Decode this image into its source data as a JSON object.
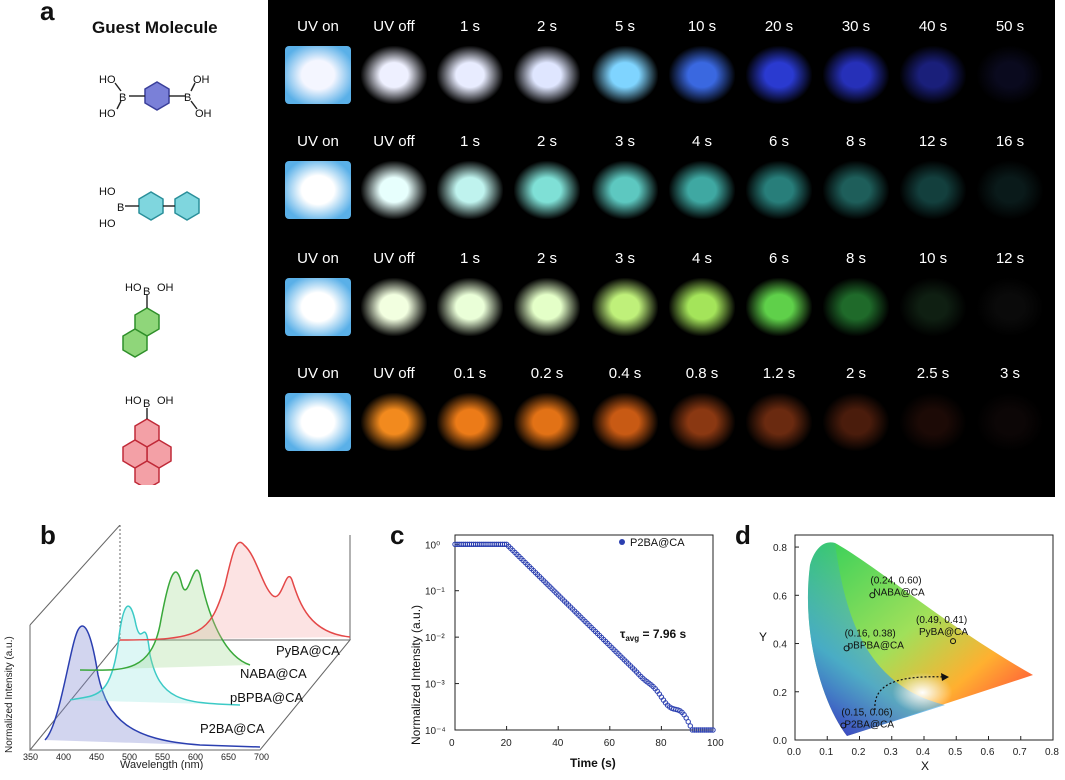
{
  "panel_labels": {
    "a": "a",
    "b": "b",
    "c": "c",
    "d": "d"
  },
  "guest_title": "Guest Molecule",
  "molecules": [
    {
      "name": "benzene-diboronic-acid",
      "color": "#5559c8",
      "labels": [
        "HO",
        "B",
        "OH",
        "B",
        "HO",
        "OH"
      ]
    },
    {
      "name": "biphenyl-boronic-acid",
      "color": "#35b8c8",
      "labels": [
        "HO",
        "B",
        "HO"
      ]
    },
    {
      "name": "naphthalene-boronic-acid",
      "color": "#3fae3b",
      "labels": [
        "HO",
        "B",
        "OH"
      ]
    },
    {
      "name": "pyrene-boronic-acid",
      "color": "#e0505a",
      "labels": [
        "HO",
        "B",
        "OH"
      ]
    }
  ],
  "photo_rows": [
    {
      "labels": [
        "UV on",
        "UV off",
        "1 s",
        "2 s",
        "5 s",
        "10 s",
        "20 s",
        "30 s",
        "40 s",
        "50 s"
      ],
      "colors": [
        "#f4f6ff",
        "#eef0ff",
        "#e8ecff",
        "#dfe6ff",
        "#7fd4ff",
        "#3a68e0",
        "#2a3ad0",
        "#2630b8",
        "#1a1f7a",
        "#0a0a1e"
      ]
    },
    {
      "labels": [
        "UV on",
        "UV off",
        "1 s",
        "2 s",
        "3 s",
        "4 s",
        "6 s",
        "8 s",
        "12 s",
        "16 s"
      ],
      "colors": [
        "#ffffff",
        "#e7fffd",
        "#bff3ee",
        "#7fe0d6",
        "#5dc8c0",
        "#3fa8a2",
        "#287e7a",
        "#1e5e5a",
        "#133f3d",
        "#0a1a1a"
      ]
    },
    {
      "labels": [
        "UV on",
        "UV off",
        "1 s",
        "2 s",
        "3 s",
        "4 s",
        "6 s",
        "8 s",
        "10 s",
        "12 s"
      ],
      "colors": [
        "#ffffff",
        "#f2ffe0",
        "#eaffd8",
        "#e4ffc8",
        "#bff07a",
        "#a4e45a",
        "#5fd04a",
        "#1f6a2a",
        "#0f1f12",
        "#0a0a0a"
      ]
    },
    {
      "labels": [
        "UV on",
        "UV off",
        "0.1 s",
        "0.2 s",
        "0.4 s",
        "0.8 s",
        "1.2 s",
        "2 s",
        "2.5 s",
        "3 s"
      ],
      "colors": [
        "#ffffff",
        "#f28a1e",
        "#ec7b18",
        "#e27216",
        "#c85a14",
        "#8a3812",
        "#6a2a10",
        "#4a1c0c",
        "#1c0a06",
        "#0c0606"
      ]
    }
  ],
  "chart_data": [
    {
      "type": "line",
      "panel": "b",
      "xlabel": "Wavelength (nm)",
      "ylabel": "Normalized Intensity (a.u.)",
      "x_ticks": [
        "350",
        "400",
        "450",
        "500",
        "550",
        "600",
        "650",
        "700"
      ],
      "series": [
        {
          "name": "P2BA@CA",
          "color": "#2b3fb0"
        },
        {
          "name": "pBPBA@CA",
          "color": "#3ccac6"
        },
        {
          "name": "NABA@CA",
          "color": "#39a83a"
        },
        {
          "name": "PyBA@CA",
          "color": "#e44848"
        }
      ]
    },
    {
      "type": "scatter",
      "panel": "c",
      "xlabel": "Time (s)",
      "ylabel": "Normalized Intensity (a.u.)",
      "x_ticks": [
        "0",
        "20",
        "40",
        "60",
        "80",
        "100"
      ],
      "y_ticks": [
        "10⁰",
        "10⁻¹",
        "10⁻²",
        "10⁻³",
        "10⁻⁴"
      ],
      "xlim": [
        0,
        100
      ],
      "ylim_log10": [
        -4,
        0.2
      ],
      "series": [
        {
          "name": "P2BA@CA",
          "color": "#2b3fb0",
          "plateau_end": 20,
          "tau": 7.96
        }
      ],
      "annotation_main": "τ",
      "annotation_sub": "avg",
      "annotation_value": " = 7.96 s"
    },
    {
      "type": "scatter",
      "panel": "d",
      "xlabel": "X",
      "ylabel": "Y",
      "x_ticks": [
        "0.0",
        "0.1",
        "0.2",
        "0.3",
        "0.4",
        "0.5",
        "0.6",
        "0.7",
        "0.8"
      ],
      "y_ticks": [
        "0.0",
        "0.2",
        "0.4",
        "0.6",
        "0.8"
      ],
      "xlim": [
        0,
        0.8
      ],
      "ylim": [
        0,
        0.85
      ],
      "points": [
        {
          "label": "NABA@CA",
          "coord": "(0.24, 0.60)",
          "x": 0.24,
          "y": 0.6
        },
        {
          "label": "pBPBA@CA",
          "coord": "(0.16, 0.38)",
          "x": 0.16,
          "y": 0.38
        },
        {
          "label": "PyBA@CA",
          "coord": "(0.49, 0.41)",
          "x": 0.49,
          "y": 0.41
        },
        {
          "label": "P2BA@CA",
          "coord": "(0.15, 0.06)",
          "x": 0.15,
          "y": 0.06
        }
      ]
    }
  ]
}
